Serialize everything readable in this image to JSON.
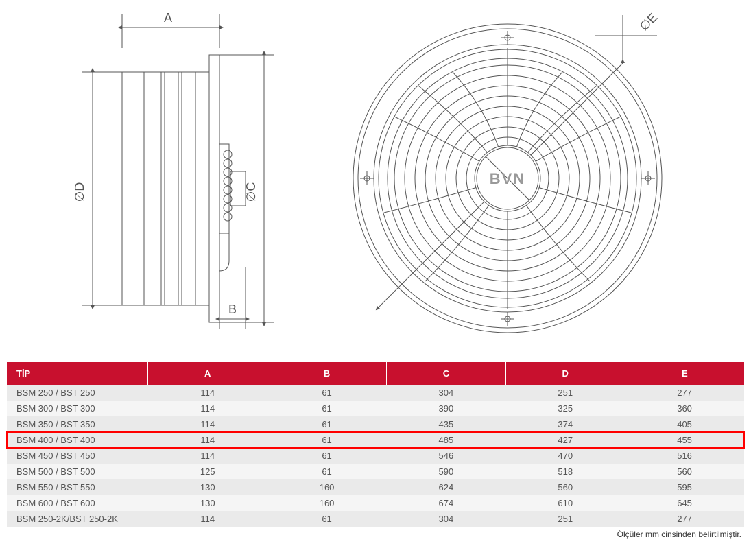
{
  "diagram": {
    "labels": {
      "A": "A",
      "B": "B",
      "C": "C",
      "D": "D",
      "E": "E",
      "diaD": "D",
      "diaC": "C",
      "diaE": "E"
    },
    "brand": "BVN",
    "stroke_color": "#555555",
    "stroke_width": 1,
    "arrow_color": "#555555"
  },
  "table": {
    "header_bg": "#c8102e",
    "header_fg": "#ffffff",
    "row_odd_bg": "#eaeaea",
    "row_even_bg": "#f5f5f5",
    "highlight_border": "#ff0000",
    "text_color": "#555555",
    "columns": [
      "TİP",
      "A",
      "B",
      "C",
      "D",
      "E"
    ],
    "rows": [
      {
        "tip": "BSM 250 / BST 250",
        "A": "114",
        "B": "61",
        "C": "304",
        "D": "251",
        "E": "277",
        "highlight": false
      },
      {
        "tip": "BSM 300 / BST 300",
        "A": "114",
        "B": "61",
        "C": "390",
        "D": "325",
        "E": "360",
        "highlight": false
      },
      {
        "tip": "BSM 350 / BST 350",
        "A": "114",
        "B": "61",
        "C": "435",
        "D": "374",
        "E": "405",
        "highlight": false
      },
      {
        "tip": "BSM 400 / BST 400",
        "A": "114",
        "B": "61",
        "C": "485",
        "D": "427",
        "E": "455",
        "highlight": true
      },
      {
        "tip": "BSM 450 / BST 450",
        "A": "114",
        "B": "61",
        "C": "546",
        "D": "470",
        "E": "516",
        "highlight": false
      },
      {
        "tip": "BSM 500 / BST 500",
        "A": "125",
        "B": "61",
        "C": "590",
        "D": "518",
        "E": "560",
        "highlight": false
      },
      {
        "tip": "BSM 550 / BST 550",
        "A": "130",
        "B": "160",
        "C": "624",
        "D": "560",
        "E": "595",
        "highlight": false
      },
      {
        "tip": "BSM 600 / BST 600",
        "A": "130",
        "B": "160",
        "C": "674",
        "D": "610",
        "E": "645",
        "highlight": false
      },
      {
        "tip": "BSM 250-2K/BST 250-2K",
        "A": "114",
        "B": "61",
        "C": "304",
        "D": "251",
        "E": "277",
        "highlight": false
      }
    ]
  },
  "footnote": "Ölçüler mm cinsinden belirtilmiştir."
}
